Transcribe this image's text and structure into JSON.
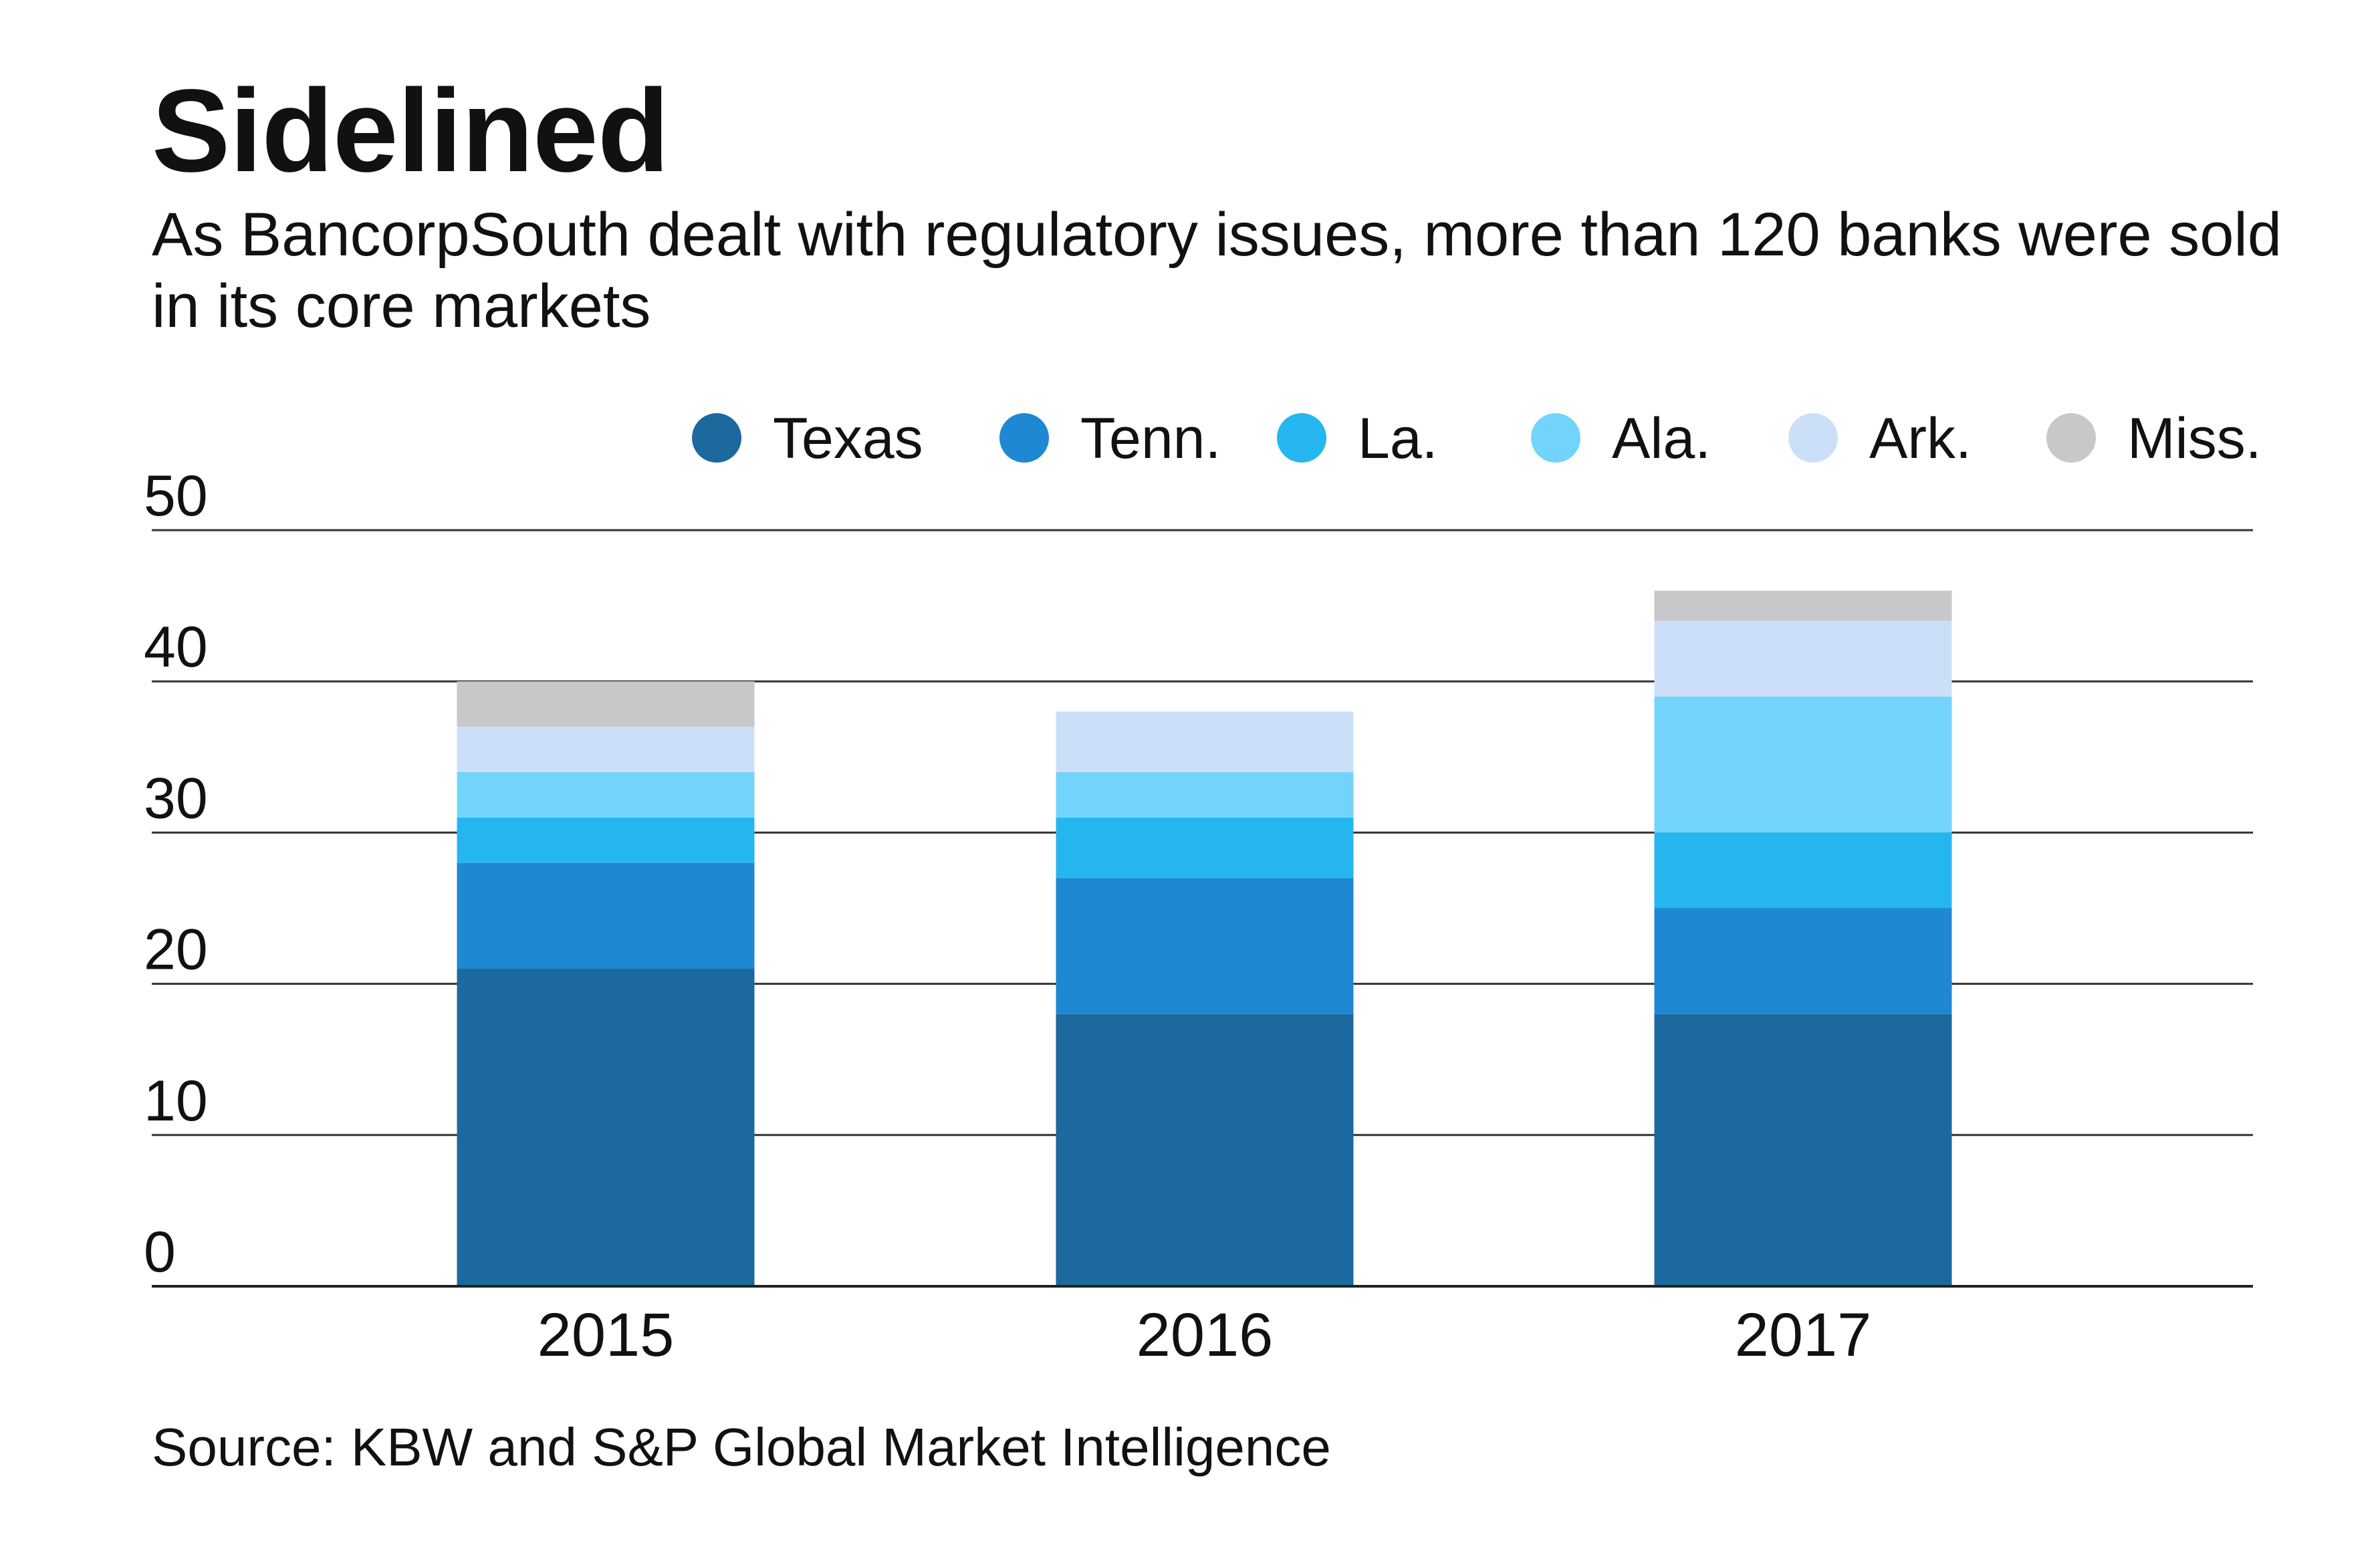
{
  "title": "Sidelined",
  "subtitle": "As BancorpSouth dealt with regulatory issues, more than 120 banks were sold in its core markets",
  "source": "Source: KBW and S&P Global Market Intelligence",
  "chart_data": {
    "type": "bar",
    "stacked": true,
    "categories": [
      "2015",
      "2016",
      "2017"
    ],
    "series": [
      {
        "name": "Texas",
        "color": "#1b699f",
        "values": [
          21,
          18,
          18
        ]
      },
      {
        "name": "Tenn.",
        "color": "#1e88d2",
        "values": [
          7,
          9,
          7
        ]
      },
      {
        "name": "La.",
        "color": "#25b6f0",
        "values": [
          3,
          4,
          5
        ]
      },
      {
        "name": "Ala.",
        "color": "#72d4fb",
        "values": [
          3,
          3,
          9
        ]
      },
      {
        "name": "Ark.",
        "color": "#cbe0f8",
        "values": [
          3,
          4,
          5
        ]
      },
      {
        "name": "Miss.",
        "color": "#c8c8ca",
        "values": [
          3,
          0,
          2
        ]
      }
    ],
    "yticks": [
      "0",
      "10",
      "20",
      "30",
      "40",
      "50"
    ],
    "ylim": [
      0,
      50
    ],
    "xlabel": "",
    "ylabel": "",
    "grid": true,
    "legend_position": "top-right"
  }
}
